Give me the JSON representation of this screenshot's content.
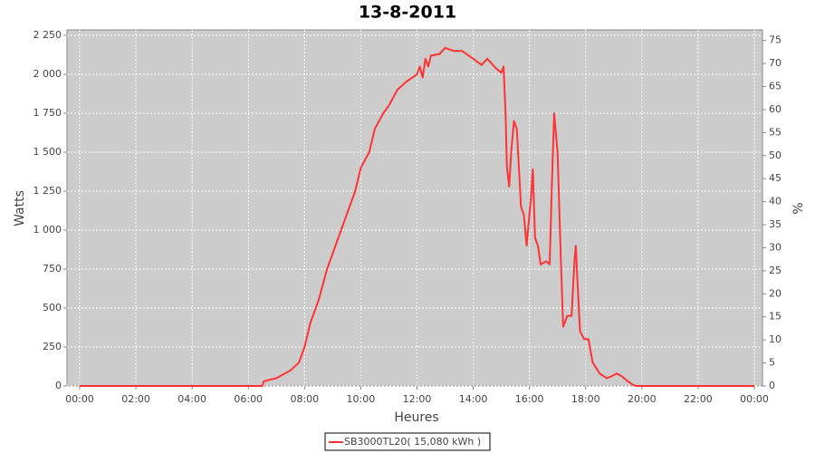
{
  "chart_data": {
    "type": "line",
    "title": "13-8-2011",
    "x_label": "Heures",
    "y_label": "Watts",
    "y2_label": "%",
    "x": [
      0,
      6.5,
      6.55,
      7,
      7.5,
      7.8,
      8,
      8.2,
      8.5,
      8.8,
      9.2,
      9.5,
      9.8,
      10,
      10.3,
      10.5,
      10.8,
      11,
      11.3,
      11.6,
      12,
      12.1,
      12.2,
      12.3,
      12.4,
      12.5,
      12.8,
      13,
      13.3,
      13.6,
      14,
      14.3,
      14.5,
      14.8,
      15,
      15.08,
      15.15,
      15.2,
      15.28,
      15.35,
      15.45,
      15.55,
      15.7,
      15.8,
      15.9,
      16.05,
      16.12,
      16.2,
      16.3,
      16.4,
      16.6,
      16.72,
      16.8,
      16.88,
      17,
      17.12,
      17.2,
      17.35,
      17.5,
      17.6,
      17.65,
      17.7,
      17.8,
      17.95,
      18.1,
      18.25,
      18.5,
      18.75,
      18.9,
      19.1,
      19.3,
      19.5,
      19.7,
      19.8,
      24
    ],
    "series": [
      {
        "name": "SB3000TL20( 15,080 kWh )",
        "color": "#ff3333",
        "values": [
          0,
          0,
          30,
          50,
          100,
          150,
          250,
          400,
          550,
          750,
          950,
          1100,
          1250,
          1400,
          1500,
          1650,
          1750,
          1800,
          1900,
          1950,
          2000,
          2050,
          1980,
          2100,
          2050,
          2120,
          2130,
          2170,
          2150,
          2150,
          2100,
          2060,
          2100,
          2040,
          2010,
          2050,
          1750,
          1400,
          1280,
          1500,
          1700,
          1650,
          1150,
          1100,
          900,
          1200,
          1390,
          950,
          900,
          780,
          800,
          780,
          1300,
          1750,
          1500,
          800,
          380,
          450,
          450,
          800,
          900,
          700,
          350,
          300,
          300,
          150,
          80,
          50,
          60,
          80,
          60,
          30,
          5,
          0,
          0
        ]
      }
    ],
    "xlim": [
      -0.45,
      24.29
    ],
    "xticks": [
      {
        "value": 0,
        "label": "00:00"
      },
      {
        "value": 2,
        "label": "02:00"
      },
      {
        "value": 4,
        "label": "04:00"
      },
      {
        "value": 6,
        "label": "06:00"
      },
      {
        "value": 8,
        "label": "08:00"
      },
      {
        "value": 10,
        "label": "10:00"
      },
      {
        "value": 12,
        "label": "12:00"
      },
      {
        "value": 14,
        "label": "14:00"
      },
      {
        "value": 16,
        "label": "16:00"
      },
      {
        "value": 18,
        "label": "18:00"
      },
      {
        "value": 20,
        "label": "20:00"
      },
      {
        "value": 22,
        "label": "22:00"
      },
      {
        "value": 24,
        "label": "00:00"
      }
    ],
    "ylim": [
      0,
      2285
    ],
    "yticks": [
      0,
      250,
      500,
      750,
      {
        "value": 1000,
        "label": "1 000"
      },
      {
        "value": 1250,
        "label": "1 250"
      },
      {
        "value": 1500,
        "label": "1 500"
      },
      {
        "value": 1750,
        "label": "1 750"
      },
      {
        "value": 2000,
        "label": "2 000"
      },
      {
        "value": 2250,
        "label": "2 250"
      }
    ],
    "y2lim": [
      0,
      77.3
    ],
    "y2ticks": [
      0,
      5,
      10,
      15,
      20,
      25,
      30,
      35,
      40,
      45,
      50,
      55,
      60,
      65,
      70,
      75
    ],
    "grid": true,
    "plot_background": "#cccccc"
  }
}
